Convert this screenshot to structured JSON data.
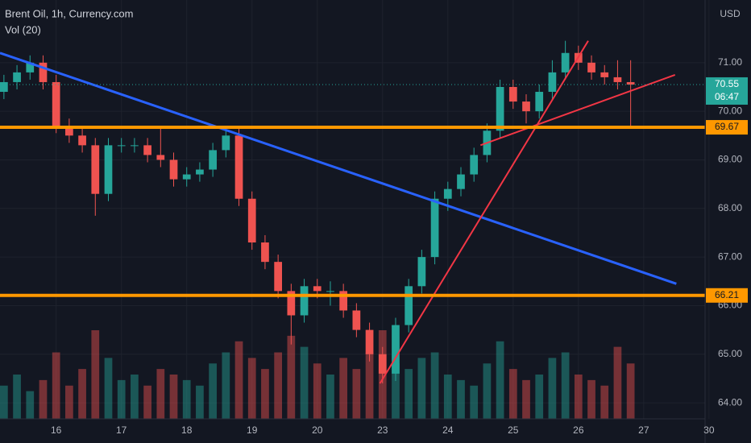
{
  "chart_data": {
    "type": "candlestick",
    "title": "Brent Oil, 1h, Currency.com",
    "volume_label": "Vol (20)",
    "currency": "USD",
    "up_color": "#26a69a",
    "down_color": "#ef5350",
    "grid": true,
    "x": [
      -0.8,
      -0.6,
      -0.4,
      -0.2,
      0,
      0.2,
      0.4,
      0.6,
      0.8,
      1,
      1.2,
      1.4,
      1.6,
      1.8,
      2,
      2.2,
      2.4,
      2.6,
      2.8,
      3,
      3.2,
      3.4,
      3.6,
      3.8,
      4,
      4.2,
      4.4,
      4.6,
      4.8,
      5,
      5.2,
      5.4,
      5.6,
      5.8,
      6,
      6.2,
      6.4,
      6.6,
      6.8,
      7,
      7.2,
      7.4,
      7.6,
      7.8,
      8,
      8.2,
      8.4,
      8.6,
      8.8
    ],
    "open": [
      70.4,
      70.6,
      70.8,
      71.0,
      70.6,
      69.7,
      69.5,
      69.3,
      68.3,
      69.3,
      69.3,
      69.3,
      69.1,
      69.0,
      68.6,
      68.7,
      68.8,
      69.2,
      69.5,
      68.2,
      67.3,
      66.9,
      66.3,
      65.8,
      66.4,
      66.3,
      66.3,
      65.9,
      65.5,
      65.0,
      64.6,
      65.6,
      66.4,
      67.0,
      68.2,
      68.4,
      68.7,
      69.1,
      69.6,
      70.5,
      70.2,
      70.0,
      70.4,
      70.8,
      71.2,
      71.0,
      70.8,
      70.7,
      70.6
    ],
    "high": [
      70.75,
      70.95,
      71.15,
      71.15,
      70.75,
      69.85,
      69.65,
      69.45,
      69.45,
      69.45,
      69.45,
      69.45,
      69.65,
      69.15,
      68.85,
      68.95,
      69.35,
      69.65,
      69.65,
      68.35,
      67.45,
      67.05,
      66.45,
      66.55,
      66.55,
      66.5,
      66.45,
      66.05,
      65.65,
      65.15,
      65.75,
      66.55,
      67.15,
      68.35,
      68.55,
      68.85,
      69.25,
      69.75,
      70.65,
      70.65,
      70.35,
      70.55,
      71.05,
      71.45,
      71.35,
      71.15,
      70.95,
      71.05,
      71.05
    ],
    "low": [
      70.25,
      70.45,
      70.65,
      70.45,
      69.55,
      69.35,
      69.15,
      67.85,
      68.15,
      69.15,
      69.15,
      68.95,
      68.85,
      68.45,
      68.45,
      68.55,
      68.65,
      69.05,
      68.05,
      67.15,
      66.75,
      66.15,
      65.2,
      65.65,
      66.15,
      66.0,
      65.75,
      65.35,
      64.85,
      64.4,
      64.45,
      65.45,
      66.25,
      66.85,
      67.95,
      68.25,
      68.55,
      68.95,
      69.45,
      70.05,
      69.75,
      69.85,
      70.25,
      70.65,
      70.85,
      70.65,
      70.55,
      70.45,
      69.7
    ],
    "close": [
      70.6,
      70.8,
      71.0,
      70.6,
      69.7,
      69.5,
      69.3,
      68.3,
      69.3,
      69.3,
      69.3,
      69.1,
      69.0,
      68.6,
      68.7,
      68.8,
      69.2,
      69.5,
      68.2,
      67.3,
      66.9,
      66.3,
      65.8,
      66.4,
      66.3,
      66.3,
      65.9,
      65.5,
      65.0,
      64.6,
      65.6,
      66.4,
      67.0,
      68.2,
      68.4,
      68.7,
      69.1,
      69.6,
      70.5,
      70.2,
      70.0,
      70.4,
      70.8,
      71.2,
      71.0,
      70.8,
      70.7,
      70.6,
      70.55
    ],
    "volume": [
      30,
      40,
      25,
      35,
      60,
      30,
      45,
      80,
      55,
      35,
      40,
      30,
      45,
      40,
      35,
      30,
      50,
      60,
      70,
      55,
      45,
      60,
      75,
      65,
      50,
      40,
      55,
      45,
      60,
      80,
      50,
      45,
      55,
      60,
      40,
      35,
      30,
      50,
      70,
      45,
      35,
      40,
      55,
      60,
      40,
      35,
      30,
      65,
      50
    ],
    "xlim": [
      -0.86,
      9.94
    ],
    "xticks": [
      {
        "value": 0,
        "label": "16"
      },
      {
        "value": 1,
        "label": "17"
      },
      {
        "value": 2,
        "label": "18"
      },
      {
        "value": 3,
        "label": "19"
      },
      {
        "value": 4,
        "label": "20"
      },
      {
        "value": 5,
        "label": "23"
      },
      {
        "value": 6,
        "label": "24"
      },
      {
        "value": 7,
        "label": "25"
      },
      {
        "value": 8,
        "label": "26"
      },
      {
        "value": 9,
        "label": "27"
      },
      {
        "value": 10,
        "label": "30"
      }
    ],
    "ylim": [
      63.67,
      72.29
    ],
    "yticks": [
      {
        "value": 64,
        "label": "64.00"
      },
      {
        "value": 65,
        "label": "65.00"
      },
      {
        "value": 66,
        "label": "66.00"
      },
      {
        "value": 67,
        "label": "67.00"
      },
      {
        "value": 68,
        "label": "68.00"
      },
      {
        "value": 69,
        "label": "69.00"
      },
      {
        "value": 70,
        "label": "70.00"
      },
      {
        "value": 71,
        "label": "71.00"
      }
    ],
    "levels": [
      {
        "value": 69.67,
        "color": "#ff9800"
      },
      {
        "value": 66.21,
        "color": "#ff9800"
      }
    ],
    "last_price": {
      "value": 70.55,
      "countdown": "06:47",
      "color": "#26a69a"
    },
    "trendlines": [
      {
        "color": "#2962ff",
        "x": [
          -0.86,
          9.5
        ],
        "y": [
          71.2,
          66.45
        ]
      },
      {
        "color": "#f23645",
        "x": [
          4.96,
          8.15
        ],
        "y": [
          64.4,
          71.45
        ]
      },
      {
        "color": "#f23645",
        "x": [
          6.5,
          9.48
        ],
        "y": [
          69.3,
          70.75
        ]
      }
    ]
  }
}
